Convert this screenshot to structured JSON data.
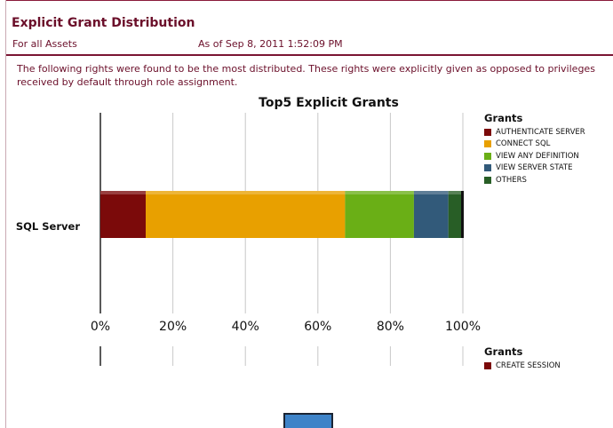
{
  "report": {
    "title": "Explicit Grant Distribution",
    "scope": "For all Assets",
    "as_of": "As of Sep 8, 2011 1:52:09 PM",
    "description_line1": "The following rights were found to be the most distributed. These rights were explicitly given as opposed to privileges",
    "description_line2": "received by default through role assignment."
  },
  "chart_data": [
    {
      "type": "bar",
      "orientation": "horizontal",
      "stacked": true,
      "title": "Top5 Explicit Grants",
      "categories": [
        "SQL Server"
      ],
      "series": [
        {
          "name": "AUTHENTICATE SERVER",
          "values": [
            12.5
          ],
          "color": "#7b0a0a"
        },
        {
          "name": "CONNECT SQL",
          "values": [
            55
          ],
          "color": "#e8a000"
        },
        {
          "name": "VIEW ANY DEFINITION",
          "values": [
            19
          ],
          "color": "#6aaf16"
        },
        {
          "name": "VIEW SERVER STATE",
          "values": [
            9.5
          ],
          "color": "#325a7a"
        },
        {
          "name": "OTHERS",
          "values": [
            4
          ],
          "color": "#285e26"
        }
      ],
      "xlim": [
        0,
        100
      ],
      "x_ticks": [
        "0%",
        "20%",
        "40%",
        "60%",
        "80%",
        "100%"
      ],
      "grid": true,
      "legend": {
        "title": "Grants",
        "position": "right"
      }
    },
    {
      "type": "bar",
      "orientation": "horizontal",
      "stacked": true,
      "legend": {
        "title": "Grants",
        "position": "right",
        "items": [
          {
            "name": "CREATE SESSION",
            "color": "#7b0a0a"
          }
        ]
      }
    }
  ]
}
